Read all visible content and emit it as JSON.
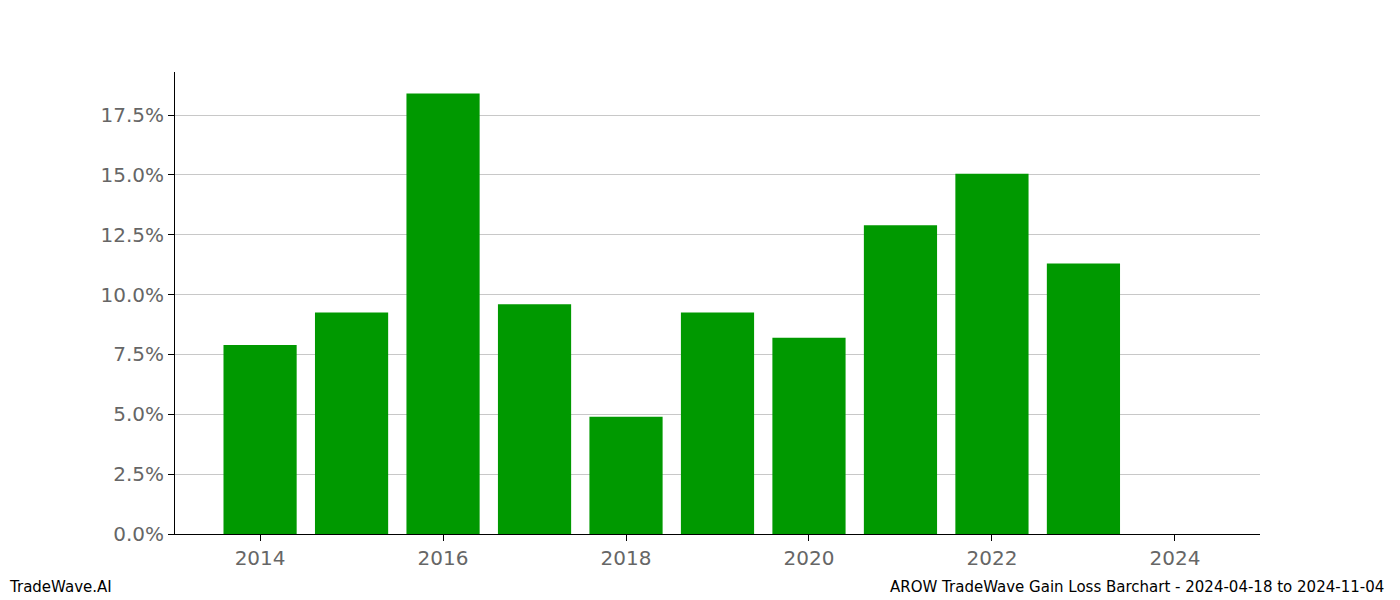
{
  "chart_data": {
    "type": "bar",
    "x": [
      2014,
      2015,
      2016,
      2017,
      2018,
      2019,
      2020,
      2021,
      2022,
      2023,
      2024
    ],
    "values": [
      7.9,
      9.25,
      18.4,
      9.6,
      4.9,
      9.25,
      8.2,
      12.9,
      15.05,
      11.3,
      null
    ],
    "color": "#009900",
    "xlim": [
      2013.07,
      2024.93
    ],
    "xticks": [
      2014,
      2016,
      2018,
      2020,
      2022,
      2024
    ],
    "ylim": [
      0,
      19.3
    ],
    "yticks": [
      {
        "value": 0,
        "label": "0.0%"
      },
      {
        "value": 2.5,
        "label": "2.5%"
      },
      {
        "value": 5,
        "label": "5.0%"
      },
      {
        "value": 7.5,
        "label": "7.5%"
      },
      {
        "value": 10,
        "label": "10.0%"
      },
      {
        "value": 12.5,
        "label": "12.5%"
      },
      {
        "value": 15,
        "label": "15.0%"
      },
      {
        "value": 17.5,
        "label": "17.5%"
      }
    ],
    "grid": true,
    "annotations": [
      "TradeWave.AI",
      "AROW TradeWave Gain Loss Barchart - 2024-04-18 to 2024-11-04"
    ]
  }
}
